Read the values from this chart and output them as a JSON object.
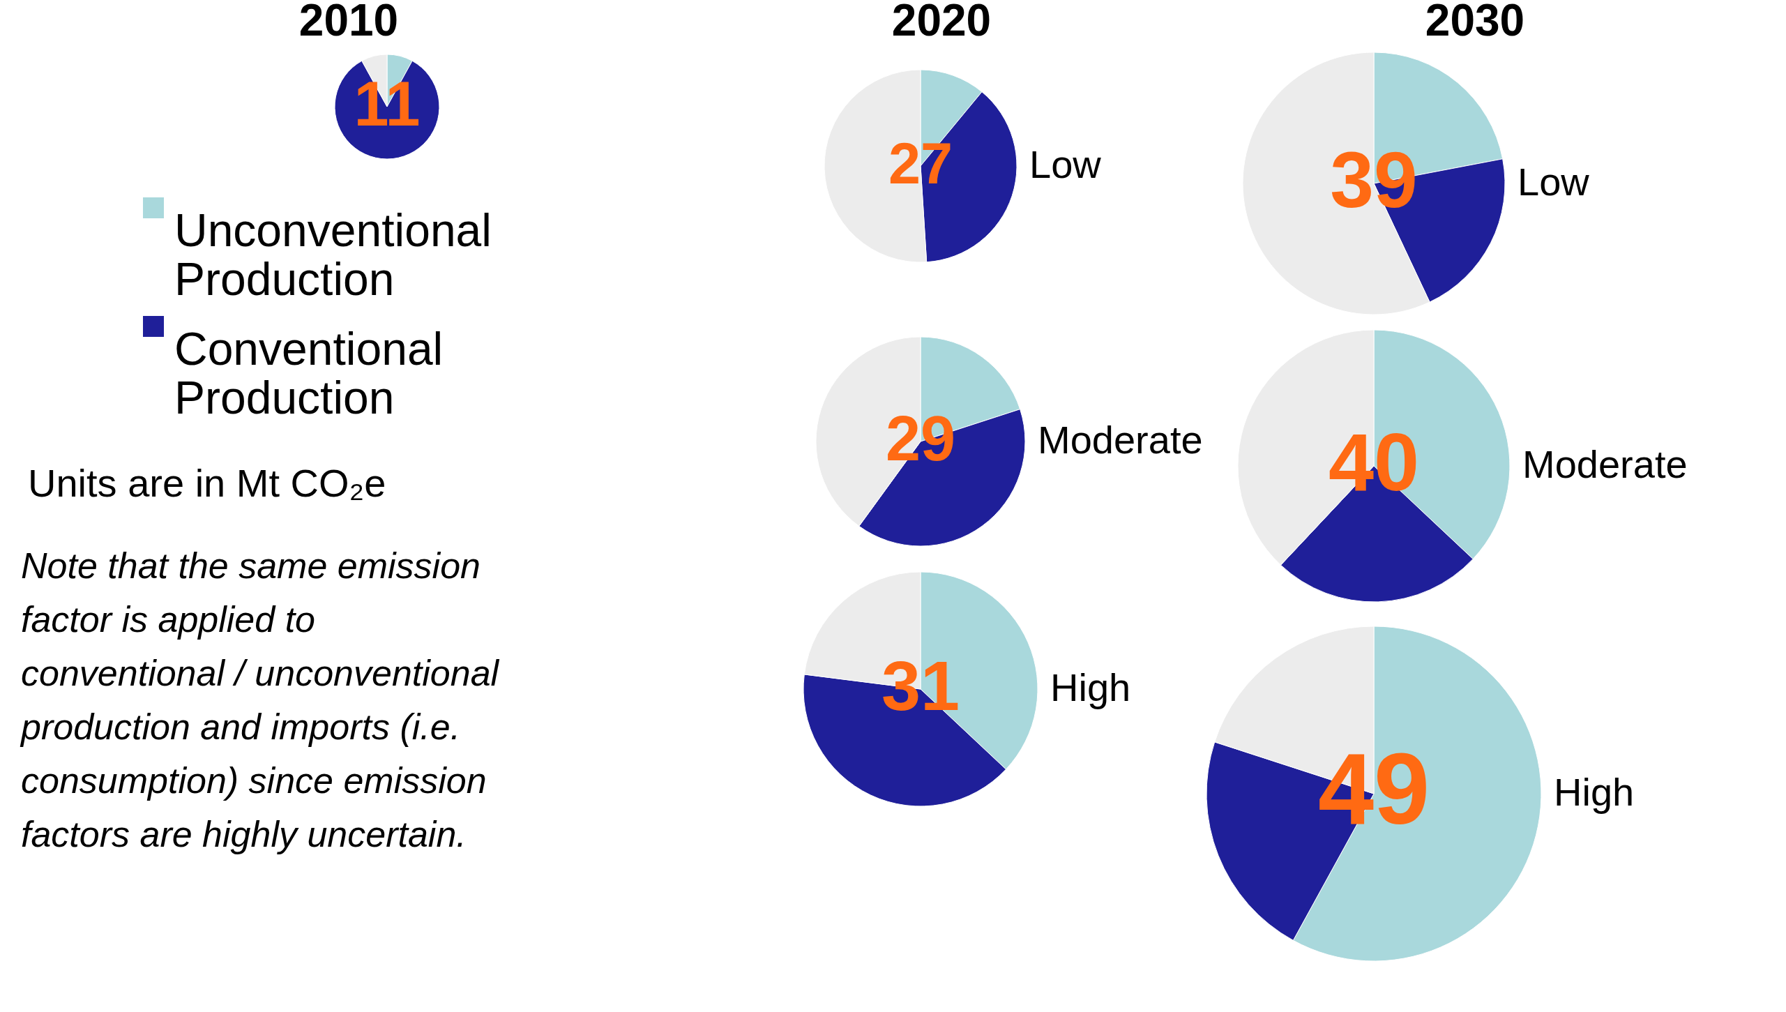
{
  "chart_data": [
    {
      "type": "pie",
      "title": "2010",
      "categories": [
        "Unconventional Production",
        "Conventional Production",
        null
      ],
      "values": [
        8,
        84,
        8
      ],
      "colors": [
        "#a9d8dc",
        "#1f1f99",
        "#ececec"
      ],
      "legend": "left",
      "annotations": [
        "11",
        "Units are in Mt CO₂e",
        "Note that the same emission factor is applied to conventional / unconventional production and imports (i.e. consumption) since emission factors are highly uncertain."
      ]
    },
    {
      "type": "pie",
      "title": "2020",
      "categories": [
        null,
        null,
        null
      ],
      "values": [
        11,
        38,
        51
      ],
      "colors": [
        "#a9d8dc",
        "#1f1f99",
        "#ececec"
      ],
      "annotations": [
        "27",
        "Low"
      ]
    },
    {
      "type": "pie",
      "categories": [
        null,
        null,
        null
      ],
      "values": [
        20,
        40,
        40
      ],
      "colors": [
        "#a9d8dc",
        "#1f1f99",
        "#ececec"
      ],
      "annotations": [
        "29",
        "Moderate"
      ]
    },
    {
      "type": "pie",
      "categories": [
        null,
        null,
        null
      ],
      "values": [
        37,
        40,
        23
      ],
      "colors": [
        "#a9d8dc",
        "#1f1f99",
        "#ececec"
      ],
      "annotations": [
        "31",
        "High"
      ]
    },
    {
      "type": "pie",
      "title": "2030",
      "categories": [
        null,
        null,
        null
      ],
      "values": [
        22,
        21,
        57
      ],
      "colors": [
        "#a9d8dc",
        "#1f1f99",
        "#ececec"
      ],
      "annotations": [
        "39",
        "Low"
      ]
    },
    {
      "type": "pie",
      "categories": [
        null,
        null,
        null
      ],
      "values": [
        37,
        25,
        38
      ],
      "colors": [
        "#a9d8dc",
        "#1f1f99",
        "#ececec"
      ],
      "annotations": [
        "40",
        "Moderate"
      ]
    },
    {
      "type": "pie",
      "categories": [
        null,
        null,
        null
      ],
      "values": [
        58,
        22,
        20
      ],
      "colors": [
        "#a9d8dc",
        "#1f1f99",
        "#ececec"
      ],
      "annotations": [
        "49",
        "High"
      ]
    }
  ]
}
